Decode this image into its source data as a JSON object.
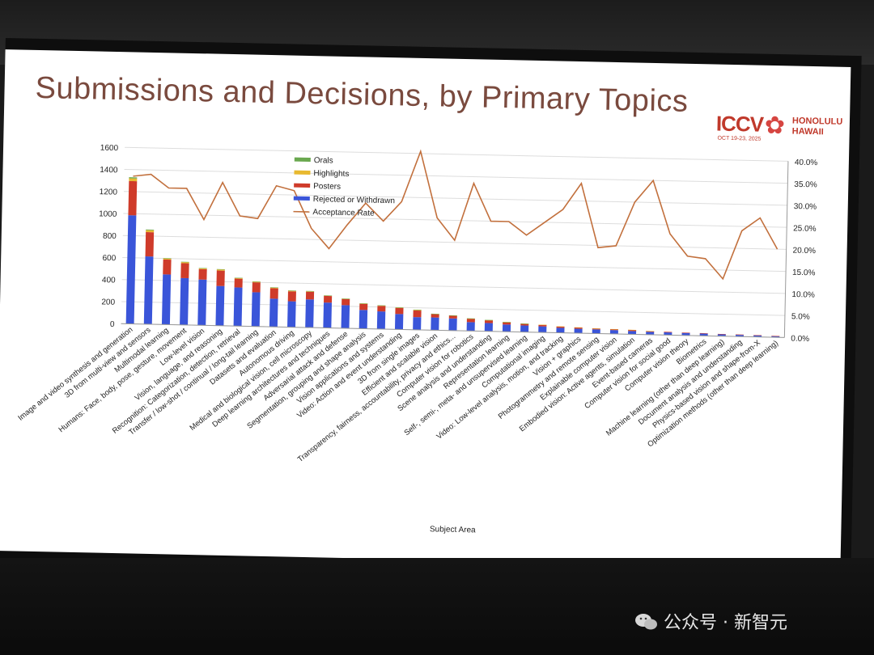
{
  "slide": {
    "title": "Submissions and Decisions, by Primary Topics",
    "logo": {
      "name": "ICCV",
      "dates": "OCT 19-23, 2025",
      "place_line1": "HONOLULU",
      "place_line2": "HAWAII"
    }
  },
  "watermark": {
    "text": "公众号 · 新智元"
  },
  "colors": {
    "rejected": "#3a55d9",
    "posters": "#cf3b2a",
    "highlights": "#e8b930",
    "orals": "#6aa84f",
    "rate": "#c2703d"
  },
  "chart_data": {
    "type": "bar",
    "stacked": true,
    "title": "",
    "xlabel": "Subject Area",
    "ylabel": "",
    "ylim": [
      0,
      1600
    ],
    "y_ticks": [
      0,
      200,
      400,
      600,
      800,
      1000,
      1200,
      1400,
      1600
    ],
    "y2lim": [
      0,
      0.4
    ],
    "y2_ticks": [
      "0.0%",
      "5.0%",
      "10.0%",
      "15.0%",
      "20.0%",
      "25.0%",
      "30.0%",
      "35.0%",
      "40.0%"
    ],
    "grid": true,
    "legend_position": "top-center",
    "categories": [
      "Image and video synthesis and generation",
      "3D from multi-view and sensors",
      "Multimodal learning",
      "Humans: Face, body, pose, gesture, movement",
      "Low-level vision",
      "Vision, language, and reasoning",
      "Recognition: Categorization, detection, retrieval",
      "Transfer / low-shot / continual / long-tail learning",
      "Datasets and evaluation",
      "Autonomous driving",
      "Medical and biological vision, cell microscopy",
      "Deep learning architectures and techniques",
      "Adversarial attack and defense",
      "Segmentation, grouping and shape analysis",
      "Vision applications and systems",
      "Video: Action and event understanding",
      "3D from single images",
      "Efficient and scalable vision",
      "Transparency, fairness, accountability, privacy and ethics...",
      "Computer vision for robotics",
      "Scene analysis and understanding",
      "Representation learning",
      "Self-, semi-, meta- and unsupervised learning",
      "Computational imaging",
      "Video: Low-level analysis, motion, and tracking",
      "Vision + graphics",
      "Photogrammetry and remote sensing",
      "Explainable computer vision",
      "Embodied vision: Active agents, simulation",
      "Event-based cameras",
      "Computer vision for social good",
      "Computer vision theory",
      "Biometrics",
      "Machine learning (other than deep learning)",
      "Document analysis and understanding",
      "Physics-based vision and shape-from-X",
      "Optimization methods (other than deep learning)"
    ],
    "series": [
      {
        "name": "Rejected or Withdrawn",
        "values": [
          985,
          615,
          455,
          425,
          415,
          360,
          350,
          310,
          255,
          235,
          255,
          230,
          210,
          170,
          160,
          140,
          115,
          115,
          110,
          80,
          75,
          65,
          60,
          55,
          45,
          40,
          38,
          35,
          30,
          26,
          24,
          22,
          20,
          17,
          15,
          13,
          11
        ]
      },
      {
        "name": "Posters",
        "values": [
          310,
          220,
          135,
          135,
          95,
          140,
          80,
          90,
          95,
          90,
          70,
          60,
          55,
          55,
          50,
          55,
          60,
          30,
          25,
          30,
          25,
          20,
          15,
          14,
          12,
          12,
          8,
          8,
          10,
          6,
          5,
          4,
          4,
          3,
          4,
          4,
          2
        ]
      },
      {
        "name": "Highlights",
        "values": [
          25,
          18,
          10,
          10,
          7,
          10,
          6,
          6,
          6,
          6,
          5,
          4,
          4,
          4,
          4,
          4,
          6,
          3,
          2,
          3,
          2,
          2,
          1,
          1,
          1,
          1,
          1,
          1,
          1,
          1,
          0,
          0,
          0,
          0,
          0,
          0,
          0
        ]
      },
      {
        "name": "Orals",
        "values": [
          10,
          6,
          3,
          3,
          3,
          3,
          2,
          2,
          2,
          2,
          2,
          1,
          1,
          1,
          1,
          1,
          2,
          1,
          1,
          1,
          1,
          1,
          1,
          0,
          0,
          0,
          0,
          0,
          0,
          0,
          0,
          0,
          0,
          0,
          0,
          0,
          0
        ]
      },
      {
        "name": "Acceptance Rate",
        "axis": "right",
        "values": [
          0.335,
          0.34,
          0.31,
          0.31,
          0.24,
          0.325,
          0.25,
          0.245,
          0.32,
          0.31,
          0.225,
          0.18,
          0.235,
          0.285,
          0.245,
          0.29,
          0.405,
          0.255,
          0.205,
          0.335,
          0.25,
          0.25,
          0.22,
          0.25,
          0.28,
          0.34,
          0.195,
          0.2,
          0.3,
          0.35,
          0.23,
          0.18,
          0.175,
          0.13,
          0.24,
          0.27,
          0.2
        ]
      }
    ]
  }
}
